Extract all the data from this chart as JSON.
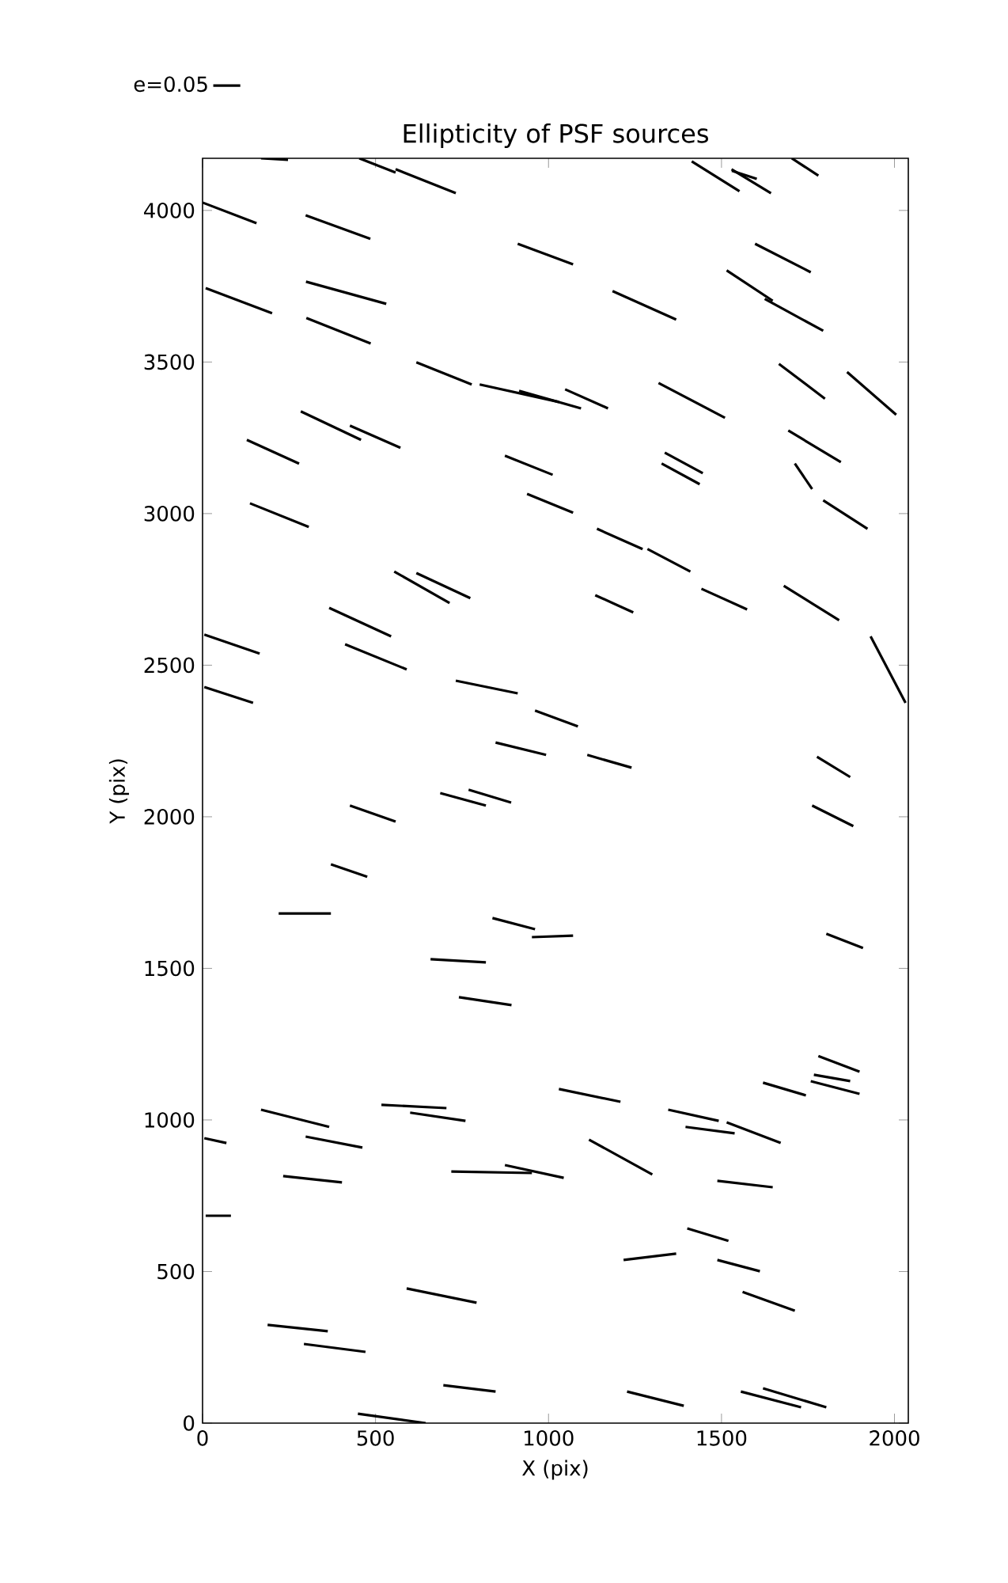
{
  "chart_data": {
    "type": "line",
    "title": "Ellipticity of PSF sources",
    "xlabel": "X (pix)",
    "ylabel": "Y (pix)",
    "xlim": [
      0,
      2040
    ],
    "ylim": [
      0,
      4172
    ],
    "xticks": [
      0,
      500,
      1000,
      1500,
      2000
    ],
    "yticks": [
      0,
      500,
      1000,
      1500,
      2000,
      2500,
      3000,
      3500,
      4000
    ],
    "legend": "top left",
    "marker": "none",
    "line_style": "solid",
    "series": [
      {
        "name": "e=0.05",
        "color": "#000000",
        "x": [
          169,
          247
        ],
        "values": [
          4172,
          4167
        ]
      },
      {
        "color": "#000000",
        "x": [
          453,
          558
        ],
        "values": [
          4172,
          4125
        ]
      },
      {
        "color": "#000000",
        "x": [
          558,
          732
        ],
        "values": [
          4136,
          4057
        ]
      },
      {
        "color": "#000000",
        "x": [
          0,
          156
        ],
        "values": [
          4026,
          3958
        ]
      },
      {
        "color": "#000000",
        "x": [
          298,
          485
        ],
        "values": [
          3984,
          3906
        ]
      },
      {
        "color": "#000000",
        "x": [
          911,
          1071
        ],
        "values": [
          3890,
          3822
        ]
      },
      {
        "color": "#000000",
        "x": [
          1414,
          1552
        ],
        "values": [
          4162,
          4063
        ]
      },
      {
        "color": "#000000",
        "x": [
          1529,
          1643
        ],
        "values": [
          4136,
          4057
        ]
      },
      {
        "color": "#000000",
        "x": [
          1530,
          1602
        ],
        "values": [
          4131,
          4104
        ]
      },
      {
        "color": "#000000",
        "x": [
          1703,
          1780
        ],
        "values": [
          4172,
          4115
        ]
      },
      {
        "color": "#000000",
        "x": [
          1597,
          1758
        ],
        "values": [
          3890,
          3796
        ]
      },
      {
        "color": "#000000",
        "x": [
          1515,
          1648
        ],
        "values": [
          3802,
          3702
        ]
      },
      {
        "color": "#000000",
        "x": [
          1625,
          1794
        ],
        "values": [
          3708,
          3603
        ]
      },
      {
        "color": "#000000",
        "x": [
          9,
          201
        ],
        "values": [
          3744,
          3661
        ]
      },
      {
        "color": "#000000",
        "x": [
          299,
          531
        ],
        "values": [
          3765,
          3692
        ]
      },
      {
        "color": "#000000",
        "x": [
          300,
          486
        ],
        "values": [
          3645,
          3561
        ]
      },
      {
        "color": "#000000",
        "x": [
          1185,
          1369
        ],
        "values": [
          3734,
          3640
        ]
      },
      {
        "color": "#000000",
        "x": [
          618,
          778
        ],
        "values": [
          3499,
          3426
        ]
      },
      {
        "color": "#000000",
        "x": [
          801,
          1030
        ],
        "values": [
          3426,
          3368
        ]
      },
      {
        "color": "#000000",
        "x": [
          915,
          1094
        ],
        "values": [
          3405,
          3347
        ]
      },
      {
        "color": "#000000",
        "x": [
          1048,
          1172
        ],
        "values": [
          3410,
          3347
        ]
      },
      {
        "color": "#000000",
        "x": [
          1318,
          1510
        ],
        "values": [
          3431,
          3316
        ]
      },
      {
        "color": "#000000",
        "x": [
          1666,
          1799
        ],
        "values": [
          3494,
          3379
        ]
      },
      {
        "color": "#000000",
        "x": [
          1863,
          2005
        ],
        "values": [
          3467,
          3326
        ]
      },
      {
        "color": "#000000",
        "x": [
          284,
          458
        ],
        "values": [
          3337,
          3243
        ]
      },
      {
        "color": "#000000",
        "x": [
          426,
          572
        ],
        "values": [
          3290,
          3217
        ]
      },
      {
        "color": "#000000",
        "x": [
          128,
          279
        ],
        "values": [
          3243,
          3165
        ]
      },
      {
        "color": "#000000",
        "x": [
          874,
          1012
        ],
        "values": [
          3191,
          3128
        ]
      },
      {
        "color": "#000000",
        "x": [
          1336,
          1446
        ],
        "values": [
          3201,
          3133
        ]
      },
      {
        "color": "#000000",
        "x": [
          1327,
          1437
        ],
        "values": [
          3165,
          3097
        ]
      },
      {
        "color": "#000000",
        "x": [
          1693,
          1845
        ],
        "values": [
          3274,
          3170
        ]
      },
      {
        "color": "#000000",
        "x": [
          1712,
          1762
        ],
        "values": [
          3165,
          3081
        ]
      },
      {
        "color": "#000000",
        "x": [
          938,
          1071
        ],
        "values": [
          3065,
          3003
        ]
      },
      {
        "color": "#000000",
        "x": [
          137,
          307
        ],
        "values": [
          3034,
          2956
        ]
      },
      {
        "color": "#000000",
        "x": [
          1794,
          1922
        ],
        "values": [
          3044,
          2950
        ]
      },
      {
        "color": "#000000",
        "x": [
          1140,
          1272
        ],
        "values": [
          2950,
          2883
        ]
      },
      {
        "color": "#000000",
        "x": [
          1286,
          1410
        ],
        "values": [
          2883,
          2809
        ]
      },
      {
        "color": "#000000",
        "x": [
          554,
          714
        ],
        "values": [
          2809,
          2705
        ]
      },
      {
        "color": "#000000",
        "x": [
          618,
          774
        ],
        "values": [
          2804,
          2721
        ]
      },
      {
        "color": "#000000",
        "x": [
          1135,
          1245
        ],
        "values": [
          2731,
          2674
        ]
      },
      {
        "color": "#000000",
        "x": [
          1442,
          1574
        ],
        "values": [
          2752,
          2684
        ]
      },
      {
        "color": "#000000",
        "x": [
          1680,
          1840
        ],
        "values": [
          2762,
          2648
        ]
      },
      {
        "color": "#000000",
        "x": [
          366,
          545
        ],
        "values": [
          2689,
          2595
        ]
      },
      {
        "color": "#000000",
        "x": [
          5,
          165
        ],
        "values": [
          2601,
          2538
        ]
      },
      {
        "color": "#000000",
        "x": [
          412,
          590
        ],
        "values": [
          2569,
          2486
        ]
      },
      {
        "color": "#000000",
        "x": [
          1931,
          2032
        ],
        "values": [
          2595,
          2376
        ]
      },
      {
        "color": "#000000",
        "x": [
          5,
          146
        ],
        "values": [
          2428,
          2376
        ]
      },
      {
        "color": "#000000",
        "x": [
          732,
          911
        ],
        "values": [
          2449,
          2407
        ]
      },
      {
        "color": "#000000",
        "x": [
          961,
          1085
        ],
        "values": [
          2350,
          2298
        ]
      },
      {
        "color": "#000000",
        "x": [
          847,
          993
        ],
        "values": [
          2245,
          2204
        ]
      },
      {
        "color": "#000000",
        "x": [
          1112,
          1240
        ],
        "values": [
          2204,
          2162
        ]
      },
      {
        "color": "#000000",
        "x": [
          1776,
          1872
        ],
        "values": [
          2198,
          2131
        ]
      },
      {
        "color": "#000000",
        "x": [
          687,
          819
        ],
        "values": [
          2078,
          2037
        ]
      },
      {
        "color": "#000000",
        "x": [
          769,
          892
        ],
        "values": [
          2089,
          2047
        ]
      },
      {
        "color": "#000000",
        "x": [
          426,
          558
        ],
        "values": [
          2037,
          1984
        ]
      },
      {
        "color": "#000000",
        "x": [
          1762,
          1881
        ],
        "values": [
          2037,
          1969
        ]
      },
      {
        "color": "#000000",
        "x": [
          371,
          476
        ],
        "values": [
          1843,
          1802
        ]
      },
      {
        "color": "#000000",
        "x": [
          220,
          371
        ],
        "values": [
          1681,
          1681
        ]
      },
      {
        "color": "#000000",
        "x": [
          838,
          961
        ],
        "values": [
          1666,
          1629
        ]
      },
      {
        "color": "#000000",
        "x": [
          952,
          1071
        ],
        "values": [
          1603,
          1608
        ]
      },
      {
        "color": "#000000",
        "x": [
          1803,
          1909
        ],
        "values": [
          1614,
          1567
        ]
      },
      {
        "color": "#000000",
        "x": [
          659,
          819
        ],
        "values": [
          1530,
          1520
        ]
      },
      {
        "color": "#000000",
        "x": [
          741,
          893
        ],
        "values": [
          1405,
          1379
        ]
      },
      {
        "color": "#000000",
        "x": [
          1780,
          1899
        ],
        "values": [
          1211,
          1159
        ]
      },
      {
        "color": "#000000",
        "x": [
          1767,
          1872
        ],
        "values": [
          1149,
          1128
        ]
      },
      {
        "color": "#000000",
        "x": [
          1758,
          1899
        ],
        "values": [
          1128,
          1086
        ]
      },
      {
        "color": "#000000",
        "x": [
          1620,
          1744
        ],
        "values": [
          1123,
          1081
        ]
      },
      {
        "color": "#000000",
        "x": [
          1030,
          1208
        ],
        "values": [
          1102,
          1060
        ]
      },
      {
        "color": "#000000",
        "x": [
          1346,
          1492
        ],
        "values": [
          1034,
          997
        ]
      },
      {
        "color": "#000000",
        "x": [
          169,
          366
        ],
        "values": [
          1034,
          977
        ]
      },
      {
        "color": "#000000",
        "x": [
          517,
          705
        ],
        "values": [
          1050,
          1039
        ]
      },
      {
        "color": "#000000",
        "x": [
          600,
          760
        ],
        "values": [
          1024,
          997
        ]
      },
      {
        "color": "#000000",
        "x": [
          1396,
          1538
        ],
        "values": [
          977,
          956
        ]
      },
      {
        "color": "#000000",
        "x": [
          1515,
          1671
        ],
        "values": [
          992,
          924
        ]
      },
      {
        "color": "#000000",
        "x": [
          5,
          69
        ],
        "values": [
          940,
          924
        ]
      },
      {
        "color": "#000000",
        "x": [
          298,
          462
        ],
        "values": [
          945,
          909
        ]
      },
      {
        "color": "#000000",
        "x": [
          1117,
          1300
        ],
        "values": [
          935,
          820
        ]
      },
      {
        "color": "#000000",
        "x": [
          233,
          403
        ],
        "values": [
          815,
          794
        ]
      },
      {
        "color": "#000000",
        "x": [
          719,
          952
        ],
        "values": [
          830,
          825
        ]
      },
      {
        "color": "#000000",
        "x": [
          874,
          1044
        ],
        "values": [
          851,
          809
        ]
      },
      {
        "color": "#000000",
        "x": [
          1488,
          1648
        ],
        "values": [
          799,
          778
        ]
      },
      {
        "color": "#000000",
        "x": [
          9,
          82
        ],
        "values": [
          684,
          684
        ]
      },
      {
        "color": "#000000",
        "x": [
          1401,
          1520
        ],
        "values": [
          642,
          601
        ]
      },
      {
        "color": "#000000",
        "x": [
          1217,
          1369
        ],
        "values": [
          538,
          559
        ]
      },
      {
        "color": "#000000",
        "x": [
          1488,
          1611
        ],
        "values": [
          538,
          501
        ]
      },
      {
        "color": "#000000",
        "x": [
          1561,
          1712
        ],
        "values": [
          433,
          371
        ]
      },
      {
        "color": "#000000",
        "x": [
          590,
          792
        ],
        "values": [
          444,
          397
        ]
      },
      {
        "color": "#000000",
        "x": [
          188,
          362
        ],
        "values": [
          324,
          303
        ]
      },
      {
        "color": "#000000",
        "x": [
          293,
          471
        ],
        "values": [
          261,
          235
        ]
      },
      {
        "color": "#000000",
        "x": [
          696,
          847
        ],
        "values": [
          125,
          104
        ]
      },
      {
        "color": "#000000",
        "x": [
          1227,
          1391
        ],
        "values": [
          104,
          57
        ]
      },
      {
        "color": "#000000",
        "x": [
          1556,
          1730
        ],
        "values": [
          104,
          52
        ]
      },
      {
        "color": "#000000",
        "x": [
          1620,
          1803
        ],
        "values": [
          115,
          52
        ]
      },
      {
        "color": "#000000",
        "x": [
          449,
          645
        ],
        "values": [
          31,
          0
        ]
      }
    ]
  }
}
